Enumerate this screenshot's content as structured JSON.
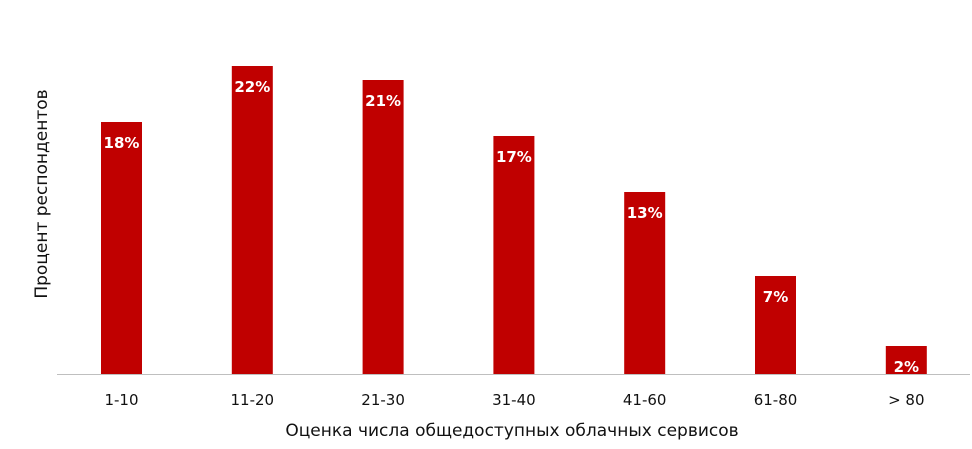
{
  "chart_data": {
    "type": "bar",
    "title": "",
    "xlabel": "Оценка числа общедоступных облачных сервисов",
    "ylabel": "Процент респондентов",
    "categories": [
      "1-10",
      "11-20",
      "21-30",
      "31-40",
      "41-60",
      "61-80",
      "> 80"
    ],
    "values": [
      18,
      22,
      21,
      17,
      13,
      7,
      2
    ],
    "value_labels": [
      "18%",
      "22%",
      "21%",
      "17%",
      "13%",
      "7%",
      "2%"
    ],
    "ylim": [
      0,
      25
    ],
    "grid": false,
    "legend": "none",
    "bar_color": "#C00000",
    "label_color": "#FFFFFF",
    "axis_color": "#BFBFBF"
  }
}
